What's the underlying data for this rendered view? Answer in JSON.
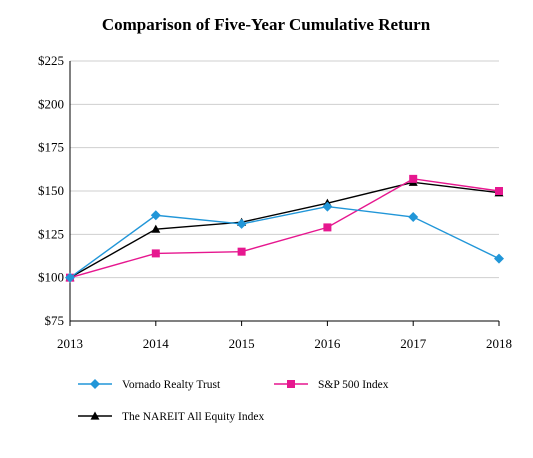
{
  "chart_data": {
    "type": "line",
    "title": "Comparison of Five-Year Cumulative Return",
    "xlabel": "",
    "ylabel": "",
    "categories": [
      "2013",
      "2014",
      "2015",
      "2016",
      "2017",
      "2018"
    ],
    "y_tick_labels": [
      "$75",
      "$100",
      "$125",
      "$150",
      "$175",
      "$200",
      "$225"
    ],
    "y_ticks": [
      75,
      100,
      125,
      150,
      175,
      200,
      225
    ],
    "ylim": [
      75,
      225
    ],
    "grid": "horizontal",
    "legend_position": "bottom",
    "series": [
      {
        "name": "Vornado Realty Trust",
        "values": [
          100,
          136,
          131,
          141,
          135,
          111
        ],
        "color": "#2196d8",
        "marker": "diamond"
      },
      {
        "name": "S&P 500 Index",
        "values": [
          100,
          114,
          115,
          129,
          157,
          150
        ],
        "color": "#e6178f",
        "marker": "square"
      },
      {
        "name": "The NAREIT All Equity Index",
        "values": [
          100,
          128,
          132,
          143,
          155,
          149
        ],
        "color": "#000000",
        "marker": "triangle"
      }
    ]
  }
}
